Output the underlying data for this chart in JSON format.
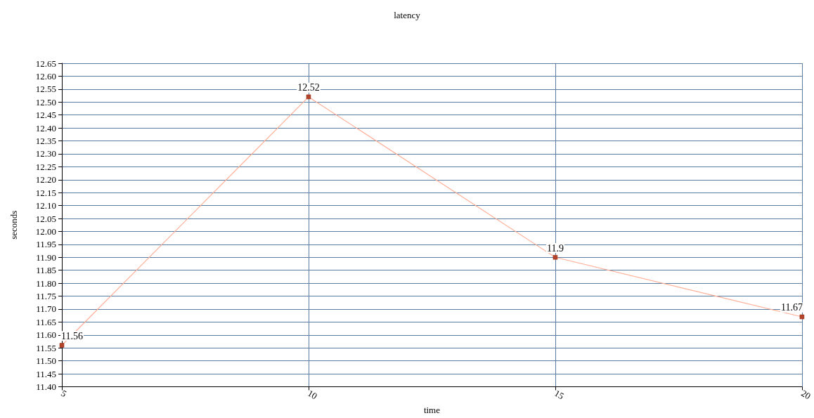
{
  "chart_data": {
    "type": "line",
    "title": "latency",
    "xlabel": "time",
    "ylabel": "seconds",
    "x": [
      5,
      10,
      15,
      20
    ],
    "series": [
      {
        "color": "#ffae96",
        "values": [
          11.56,
          12.52,
          11.9,
          11.67
        ]
      }
    ],
    "xlim": [
      5,
      20
    ],
    "xticks": [
      5,
      10,
      15,
      20
    ],
    "ylim": [
      11.4,
      12.65
    ],
    "yticks": [
      {
        "value": 11.4,
        "label": "11.40"
      },
      {
        "value": 11.45,
        "label": "11.45"
      },
      {
        "value": 11.5,
        "label": "11.50"
      },
      {
        "value": 11.55,
        "label": "11.55"
      },
      {
        "value": 11.6,
        "label": "11.60"
      },
      {
        "value": 11.65,
        "label": "11.65"
      },
      {
        "value": 11.7,
        "label": "11.70"
      },
      {
        "value": 11.75,
        "label": "11.75"
      },
      {
        "value": 11.8,
        "label": "11.80"
      },
      {
        "value": 11.85,
        "label": "11.85"
      },
      {
        "value": 11.9,
        "label": "11.90"
      },
      {
        "value": 11.95,
        "label": "11.95"
      },
      {
        "value": 12.0,
        "label": "12.00"
      },
      {
        "value": 12.05,
        "label": "12.05"
      },
      {
        "value": 12.1,
        "label": "12.10"
      },
      {
        "value": 12.15,
        "label": "12.15"
      },
      {
        "value": 12.2,
        "label": "12.20"
      },
      {
        "value": 12.25,
        "label": "12.25"
      },
      {
        "value": 12.3,
        "label": "12.30"
      },
      {
        "value": 12.35,
        "label": "12.35"
      },
      {
        "value": 12.4,
        "label": "12.40"
      },
      {
        "value": 12.45,
        "label": "12.45"
      },
      {
        "value": 12.5,
        "label": "12.50"
      },
      {
        "value": 12.55,
        "label": "12.55"
      },
      {
        "value": 12.6,
        "label": "12.60"
      },
      {
        "value": 12.65,
        "label": "12.65"
      }
    ],
    "grid": true,
    "marker": "square",
    "line_style": "solid",
    "data_labels": true
  }
}
